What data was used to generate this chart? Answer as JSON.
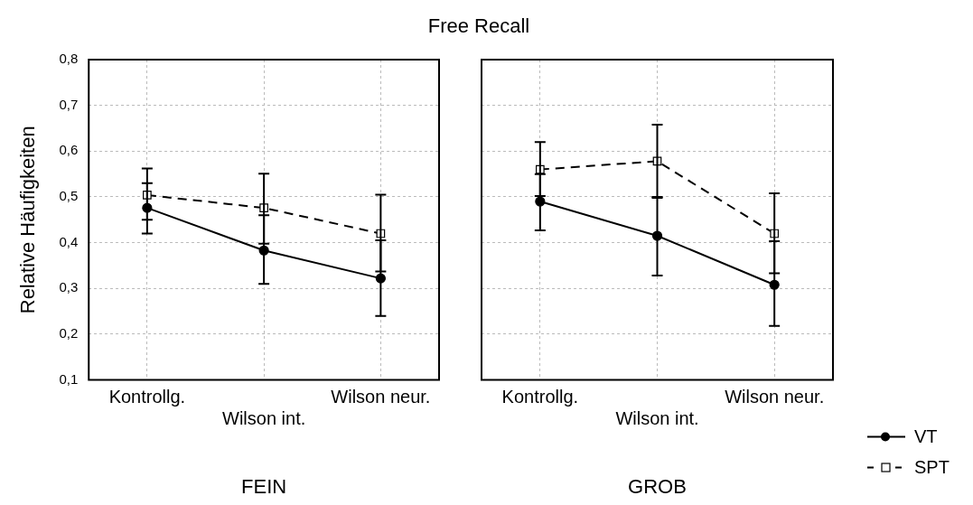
{
  "chart_data": [
    {
      "type": "line",
      "title": "Free Recall",
      "xlabel": "FEIN",
      "ylabel": "Relative Häufigkeiten",
      "categories": [
        "Kontrollg.",
        "Wilson int.",
        "Wilson neur."
      ],
      "ylim": [
        0.1,
        0.8
      ],
      "yticks": [
        {
          "value": 0.1,
          "label": "0,1"
        },
        {
          "value": 0.2,
          "label": "0,2"
        },
        {
          "value": 0.3,
          "label": "0,3"
        },
        {
          "value": 0.4,
          "label": "0,4"
        },
        {
          "value": 0.5,
          "label": "0,5"
        },
        {
          "value": 0.6,
          "label": "0,6"
        },
        {
          "value": 0.7,
          "label": "0,7"
        },
        {
          "value": 0.8,
          "label": "0,8"
        }
      ],
      "grid": true,
      "legend": "right",
      "series": [
        {
          "name": "VT",
          "color": "#000000",
          "marker": "circle",
          "line_style": "solid",
          "values": [
            0.476,
            0.383,
            0.322
          ],
          "errors": [
            [
              0.42,
              0.53
            ],
            [
              0.31,
              0.46
            ],
            [
              0.24,
              0.405
            ]
          ]
        },
        {
          "name": "SPT",
          "color": "#000000",
          "marker": "square",
          "line_style": "dashed",
          "values": [
            0.504,
            0.476,
            0.42
          ],
          "errors": [
            [
              0.45,
              0.562
            ],
            [
              0.398,
              0.551
            ],
            [
              0.337,
              0.505
            ]
          ]
        }
      ]
    },
    {
      "type": "line",
      "xlabel": "GROB",
      "categories": [
        "Kontrollg.",
        "Wilson int.",
        "Wilson neur."
      ],
      "ylim": [
        0.1,
        0.8
      ],
      "yticks": [
        {
          "value": 0.1,
          "label": null
        },
        {
          "value": 0.2,
          "label": null
        },
        {
          "value": 0.3,
          "label": null
        },
        {
          "value": 0.4,
          "label": null
        },
        {
          "value": 0.5,
          "label": null
        },
        {
          "value": 0.6,
          "label": null
        },
        {
          "value": 0.7,
          "label": null
        },
        {
          "value": 0.8,
          "label": null
        }
      ],
      "grid": true,
      "tick_labels": "x",
      "legend": "right",
      "series": [
        {
          "name": "VT",
          "color": "#000000",
          "marker": "circle",
          "line_style": "solid",
          "values": [
            0.49,
            0.415,
            0.308
          ],
          "errors": [
            [
              0.427,
              0.55
            ],
            [
              0.328,
              0.5
            ],
            [
              0.218,
              0.403
            ]
          ]
        },
        {
          "name": "SPT",
          "color": "#000000",
          "marker": "square",
          "line_style": "dashed",
          "values": [
            0.56,
            0.578,
            0.42
          ],
          "errors": [
            [
              0.502,
              0.62
            ],
            [
              0.498,
              0.658
            ],
            [
              0.333,
              0.508
            ]
          ]
        }
      ]
    }
  ]
}
